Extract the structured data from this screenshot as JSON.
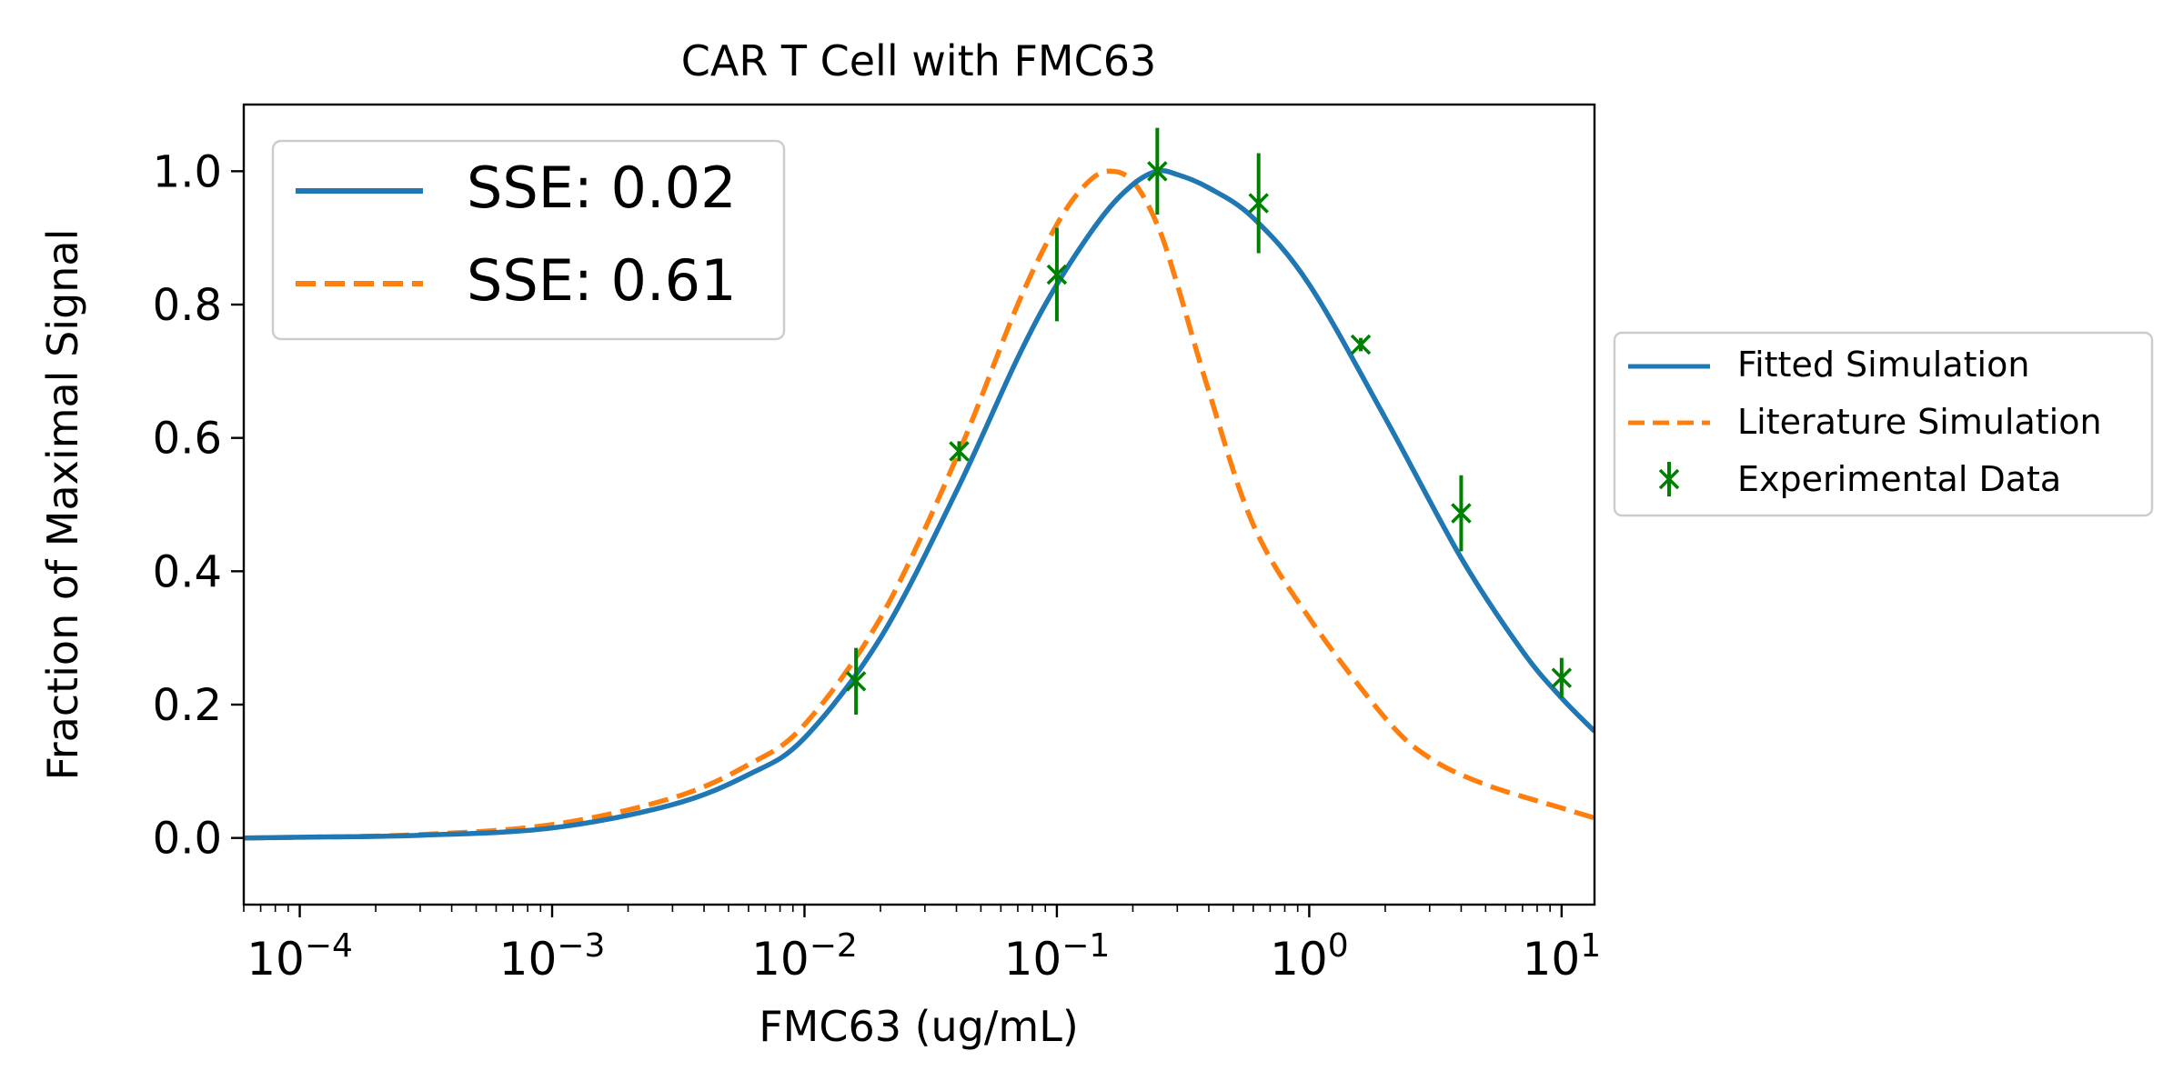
{
  "chart_data": {
    "type": "line",
    "title": "CAR T Cell with FMC63",
    "xlabel": "FMC63 (ug/mL)",
    "ylabel": "Fraction of Maximal Signal",
    "xscale": "log",
    "xlim": [
      6e-05,
      13.5
    ],
    "ylim": [
      -0.1,
      1.1
    ],
    "grid": false,
    "x_major_ticks": [
      {
        "value": 0.0001,
        "base": "10",
        "exp": "−4"
      },
      {
        "value": 0.001,
        "base": "10",
        "exp": "−3"
      },
      {
        "value": 0.01,
        "base": "10",
        "exp": "−2"
      },
      {
        "value": 0.1,
        "base": "10",
        "exp": "−1"
      },
      {
        "value": 1,
        "base": "10",
        "exp": "0"
      },
      {
        "value": 10,
        "base": "10",
        "exp": "1"
      }
    ],
    "y_ticks": [
      {
        "value": 0.0,
        "label": "0.0"
      },
      {
        "value": 0.2,
        "label": "0.2"
      },
      {
        "value": 0.4,
        "label": "0.4"
      },
      {
        "value": 0.6,
        "label": "0.6"
      },
      {
        "value": 0.8,
        "label": "0.8"
      },
      {
        "value": 1.0,
        "label": "1.0"
      }
    ],
    "series": [
      {
        "name": "Fitted Simulation",
        "style": "solid",
        "color": "#1f77b4",
        "x": [
          6e-05,
          0.0001,
          0.0003,
          0.001,
          0.003,
          0.006,
          0.01,
          0.02,
          0.04,
          0.07,
          0.1,
          0.15,
          0.2,
          0.25,
          0.3,
          0.4,
          0.6,
          1,
          2,
          4,
          7,
          10,
          13.5
        ],
        "y": [
          0.0,
          0.001,
          0.004,
          0.015,
          0.05,
          0.095,
          0.15,
          0.3,
          0.52,
          0.72,
          0.83,
          0.93,
          0.98,
          1.0,
          0.995,
          0.975,
          0.93,
          0.83,
          0.63,
          0.42,
          0.28,
          0.21,
          0.16
        ]
      },
      {
        "name": "Literature Simulation",
        "style": "dashed",
        "color": "#ff7f0e",
        "x": [
          6e-05,
          0.0001,
          0.0003,
          0.001,
          0.003,
          0.006,
          0.01,
          0.02,
          0.04,
          0.07,
          0.1,
          0.13,
          0.16,
          0.2,
          0.25,
          0.3,
          0.4,
          0.6,
          1,
          2,
          3,
          5,
          10,
          13.5
        ],
        "y": [
          0.0,
          0.001,
          0.005,
          0.02,
          0.06,
          0.11,
          0.17,
          0.33,
          0.57,
          0.8,
          0.92,
          0.98,
          1.0,
          0.985,
          0.92,
          0.83,
          0.67,
          0.47,
          0.33,
          0.18,
          0.12,
          0.08,
          0.045,
          0.03
        ]
      }
    ],
    "experimental": {
      "name": "Experimental Data",
      "color": "#008000",
      "points": [
        {
          "x": 0.016,
          "y": 0.235,
          "err": 0.05
        },
        {
          "x": 0.041,
          "y": 0.58,
          "err": 0.015
        },
        {
          "x": 0.1,
          "y": 0.845,
          "err": 0.07
        },
        {
          "x": 0.25,
          "y": 1.0,
          "err": 0.065
        },
        {
          "x": 0.63,
          "y": 0.952,
          "err": 0.075
        },
        {
          "x": 1.6,
          "y": 0.74,
          "err": 0.01
        },
        {
          "x": 4.0,
          "y": 0.487,
          "err": 0.057
        },
        {
          "x": 10.0,
          "y": 0.24,
          "err": 0.03
        }
      ]
    },
    "inner_legend": {
      "placement": "top-left",
      "entries": [
        {
          "label": "SSE: 0.02",
          "style": "solid",
          "color": "#1f77b4"
        },
        {
          "label": "SSE: 0.61",
          "style": "dashed",
          "color": "#ff7f0e"
        }
      ]
    },
    "outer_legend": {
      "placement": "right",
      "entries": [
        {
          "label": "Fitted Simulation",
          "kind": "solid",
          "color": "#1f77b4"
        },
        {
          "label": "Literature Simulation",
          "kind": "dashed",
          "color": "#ff7f0e"
        },
        {
          "label": "Experimental Data",
          "kind": "marker",
          "color": "#008000"
        }
      ]
    }
  }
}
